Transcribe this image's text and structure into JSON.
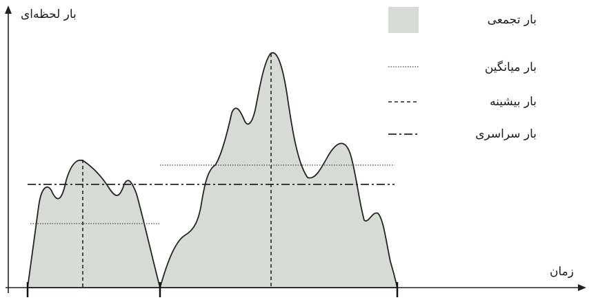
{
  "y_axis_label": "بار لحظه‌ای",
  "x_axis_label": "زمان",
  "legend": [
    {
      "label": "بار تجمعی",
      "style": "filled-area"
    },
    {
      "label": "بار میانگین",
      "style": "dotted"
    },
    {
      "label": "بار بیشینه",
      "style": "dashed"
    },
    {
      "label": "بار سراسری",
      "style": "dash-dot"
    }
  ],
  "colors": {
    "area_fill": "#d6dbd6",
    "legend_swatch": "#d6dbd6",
    "stroke": "#222222"
  }
}
